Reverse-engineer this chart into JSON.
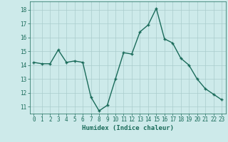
{
  "x": [
    0,
    1,
    2,
    3,
    4,
    5,
    6,
    7,
    8,
    9,
    10,
    11,
    12,
    13,
    14,
    15,
    16,
    17,
    18,
    19,
    20,
    21,
    22,
    23
  ],
  "y": [
    14.2,
    14.1,
    14.1,
    15.1,
    14.2,
    14.3,
    14.2,
    11.7,
    10.7,
    11.1,
    13.0,
    14.9,
    14.8,
    16.4,
    16.9,
    18.1,
    15.9,
    15.6,
    14.5,
    14.0,
    13.0,
    12.3,
    11.9,
    11.5
  ],
  "line_color": "#1a6b5a",
  "marker": "P",
  "marker_size": 2.0,
  "linewidth": 1.0,
  "bg_color": "#cdeaea",
  "grid_color": "#aacccc",
  "tick_color": "#1a6b5a",
  "xlabel": "Humidex (Indice chaleur)",
  "xlabel_fontsize": 6.5,
  "xlabel_color": "#1a6b5a",
  "ylabel_ticks": [
    11,
    12,
    13,
    14,
    15,
    16,
    17,
    18
  ],
  "ylim": [
    10.5,
    18.6
  ],
  "xlim": [
    -0.5,
    23.5
  ],
  "xticks": [
    0,
    1,
    2,
    3,
    4,
    5,
    6,
    7,
    8,
    9,
    10,
    11,
    12,
    13,
    14,
    15,
    16,
    17,
    18,
    19,
    20,
    21,
    22,
    23
  ],
  "tick_fontsize": 5.5
}
